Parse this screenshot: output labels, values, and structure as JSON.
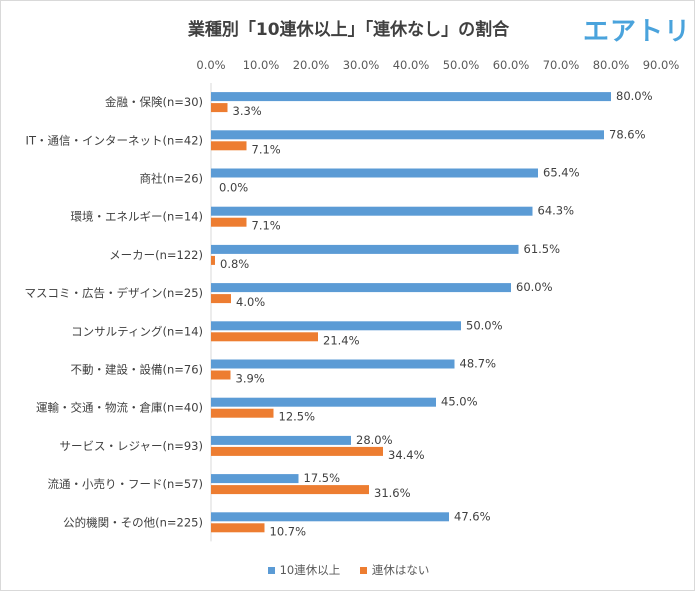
{
  "chart_data": {
    "type": "bar",
    "orientation": "horizontal",
    "title": "業種別「10連休以上」「連休なし」の割合",
    "logo": "エアトリ",
    "categories": [
      "金融・保険(n=30)",
      "IT・通信・インターネット(n=42)",
      "商社(n=26)",
      "環境・エネルギー(n=14)",
      "メーカー(n=122)",
      "マスコミ・広告・デザイン(n=25)",
      "コンサルティング(n=14)",
      "不動・建設・設備(n=76)",
      "運輸・交通・物流・倉庫(n=40)",
      "サービス・レジャー(n=93)",
      "流通・小売り・フード(n=57)",
      "公的機関・その他(n=225)"
    ],
    "series": [
      {
        "name": "10連休以上",
        "color": "#5B9BD5",
        "values": [
          80.0,
          78.6,
          65.4,
          64.3,
          61.5,
          60.0,
          50.0,
          48.7,
          45.0,
          28.0,
          17.5,
          47.6
        ],
        "labels": [
          "80.0%",
          "78.6%",
          "65.4%",
          "64.3%",
          "61.5%",
          "60.0%",
          "50.0%",
          "48.7%",
          "45.0%",
          "28.0%",
          "17.5%",
          "47.6%"
        ]
      },
      {
        "name": "連休はない",
        "color": "#ED7D31",
        "values": [
          3.3,
          7.1,
          0.0,
          7.1,
          0.8,
          4.0,
          21.4,
          3.9,
          12.5,
          34.4,
          31.6,
          10.7
        ],
        "labels": [
          "3.3%",
          "7.1%",
          "0.0%",
          "7.1%",
          "0.8%",
          "4.0%",
          "21.4%",
          "3.9%",
          "12.5%",
          "34.4%",
          "31.6%",
          "10.7%"
        ]
      }
    ],
    "xlim": [
      0,
      90
    ],
    "xticks": [
      "0.0%",
      "10.0%",
      "20.0%",
      "30.0%",
      "40.0%",
      "50.0%",
      "60.0%",
      "70.0%",
      "80.0%",
      "90.0%"
    ],
    "xaxis_position": "top",
    "grid": false,
    "legend_position": "bottom"
  }
}
